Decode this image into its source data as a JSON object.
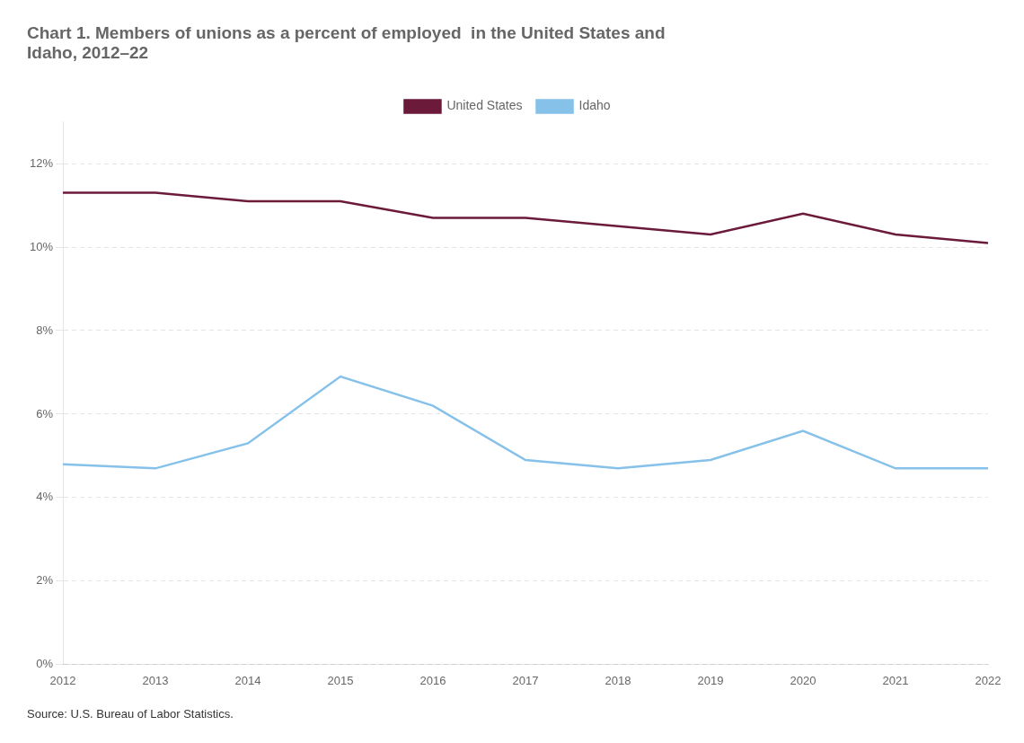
{
  "chart_data": {
    "type": "line",
    "title": "Chart 1. Members of unions as a percent of employed  in the United States and\nIdaho, 2012–22",
    "annotations": [
      "Source: U.S. Bureau of Labor Statistics."
    ],
    "x": [
      2012,
      2013,
      2014,
      2015,
      2016,
      2017,
      2018,
      2019,
      2020,
      2021,
      2022
    ],
    "series": [
      {
        "name": "United States",
        "color": "#6b1a3a",
        "values": [
          11.3,
          11.3,
          11.1,
          11.1,
          10.7,
          10.7,
          10.5,
          10.3,
          10.8,
          10.3,
          10.1
        ]
      },
      {
        "name": "Idaho",
        "color": "#85c1e9",
        "values": [
          4.8,
          4.7,
          5.3,
          6.9,
          6.2,
          4.9,
          4.7,
          4.9,
          5.6,
          4.7,
          4.7
        ]
      }
    ],
    "xlim": [
      2012,
      2022
    ],
    "xticks": [
      2012,
      2013,
      2014,
      2015,
      2016,
      2017,
      2018,
      2019,
      2020,
      2021,
      2022
    ],
    "ylim": [
      0,
      13
    ],
    "yticks": [
      {
        "value": 0,
        "label": "0%"
      },
      {
        "value": 2,
        "label": "2%"
      },
      {
        "value": 4,
        "label": "4%"
      },
      {
        "value": 6,
        "label": "6%"
      },
      {
        "value": 8,
        "label": "8%"
      },
      {
        "value": 10,
        "label": "10%"
      },
      {
        "value": 12,
        "label": "12%"
      }
    ],
    "grid": "y",
    "legend": "top"
  }
}
